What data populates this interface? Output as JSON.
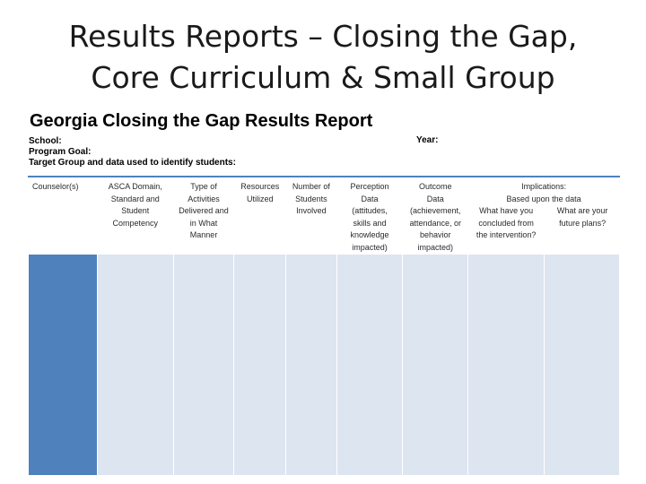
{
  "slide": {
    "title_line1": "Results Reports – Closing the Gap,",
    "title_line2": "Core Curriculum & Small Group"
  },
  "report": {
    "title": "Georgia Closing the Gap Results Report",
    "school_label": "School:",
    "program_goal_label": "Program Goal:",
    "target_group_label": "Target Group and data used to identify students:",
    "year_label": "Year:"
  },
  "table": {
    "headers": [
      "Counselor(s)",
      "ASCA Domain,\nStandard and\nStudent\nCompetency",
      "Type of\nActivities\nDelivered and\nin What\nManner",
      "Resources\nUtilized",
      "Number of\nStudents\nInvolved",
      "Perception\nData\n(attitudes,\nskills and\nknowledge\nimpacted)",
      "Outcome\nData\n(achievement,\nattendance, or\nbehavior\nimpacted)"
    ],
    "implications": {
      "title": "Implications:\nBased upon the data",
      "q1": "What have you\nconcluded from\nthe intervention?",
      "q2": "What are your\nfuture plans?"
    },
    "colors": {
      "header_rule": "#4f81bd",
      "first_column": "#4f81bd",
      "body_cells": "#dde5f0"
    }
  }
}
